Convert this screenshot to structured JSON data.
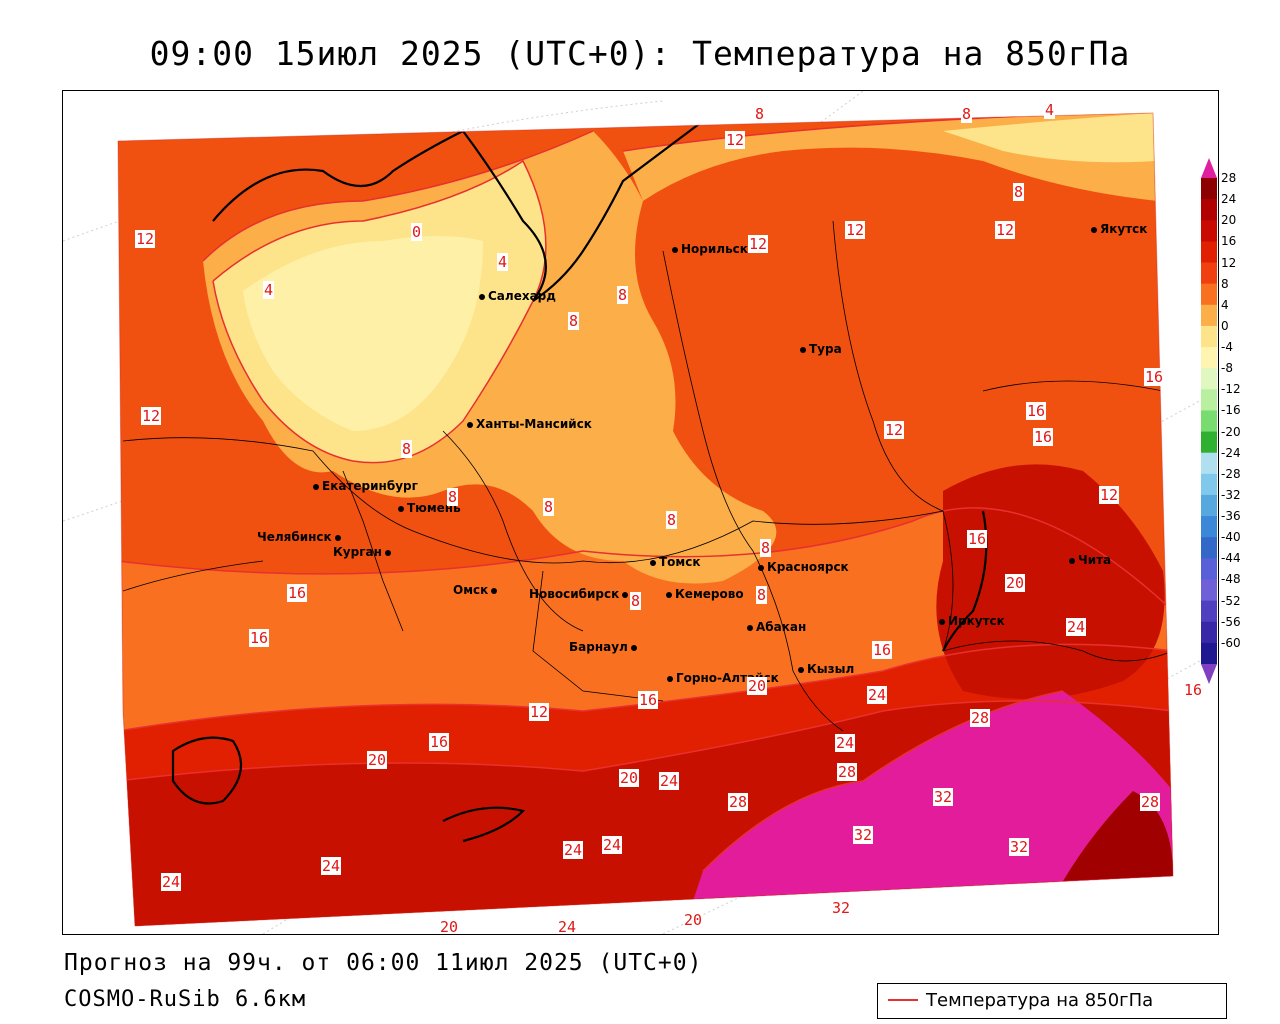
{
  "title": "09:00 15июл 2025 (UTC+0): Температура на 850гПа",
  "footer": {
    "forecast": "Прогноз на 99ч. от 06:00 11июл 2025 (UTC+0)",
    "model": "COSMO-RuSib 6.6км"
  },
  "legend": {
    "label": "Температура на 850гПа",
    "line_color": "#e83030"
  },
  "cities": [
    {
      "name": "Норильск"
    },
    {
      "name": "Якутск"
    },
    {
      "name": "Салехард"
    },
    {
      "name": "Тура"
    },
    {
      "name": "Ханты-Мансийск"
    },
    {
      "name": "Екатеринбург"
    },
    {
      "name": "Тюмень"
    },
    {
      "name": "Челябинск"
    },
    {
      "name": "Курган"
    },
    {
      "name": "Омск"
    },
    {
      "name": "Новосибирск"
    },
    {
      "name": "Томск"
    },
    {
      "name": "Кемерово"
    },
    {
      "name": "Красноярск"
    },
    {
      "name": "Абакан"
    },
    {
      "name": "Барнаул"
    },
    {
      "name": "Горно-Алтайск"
    },
    {
      "name": "Кызыл"
    },
    {
      "name": "Иркутск"
    },
    {
      "name": "Чита"
    }
  ],
  "contour_labels": [
    "12",
    "8",
    "4",
    "8",
    "12",
    "12",
    "12",
    "8",
    "12",
    "0",
    "4",
    "4",
    "8",
    "8",
    "16",
    "12",
    "16",
    "12",
    "16",
    "8",
    "8",
    "8",
    "8",
    "8",
    "8",
    "8",
    "12",
    "16",
    "16",
    "16",
    "20",
    "16",
    "16",
    "12",
    "16",
    "24",
    "20",
    "20",
    "24",
    "28",
    "24",
    "28",
    "32",
    "28",
    "16",
    "20",
    "24",
    "28",
    "32",
    "32",
    "20",
    "24",
    "24",
    "24",
    "24",
    "20",
    "24",
    "16",
    "32"
  ],
  "colorbar": {
    "ticks": [
      "28",
      "24",
      "20",
      "16",
      "12",
      "8",
      "4",
      "0",
      "-4",
      "-8",
      "-12",
      "-16",
      "-20",
      "-24",
      "-28",
      "-32",
      "-36",
      "-40",
      "-44",
      "-48",
      "-52",
      "-56",
      "-60"
    ],
    "colors": [
      "#8c0000",
      "#b00000",
      "#c80a00",
      "#e02000",
      "#f04010",
      "#f87020",
      "#fcae48",
      "#fde48a",
      "#fff4b0",
      "#e0f8c0",
      "#b8f0a0",
      "#78dc70",
      "#30b030",
      "#b0e0f0",
      "#80c8ec",
      "#58a8e0",
      "#3c88d8",
      "#3468c8",
      "#5a60d8",
      "#7060d8",
      "#5040c0",
      "#3828a8",
      "#201890"
    ],
    "top_color": "#e020a0",
    "bottom_color": "#8040c0"
  },
  "regions": {
    "cold_region": "#fde48a",
    "coolest_region": "#fff0a8",
    "warm_region": "#f05010",
    "mid_region": "#f87020",
    "hot_region": "#c81000",
    "hottest_region": "#e31c9c",
    "deep_region": "#a00000"
  }
}
